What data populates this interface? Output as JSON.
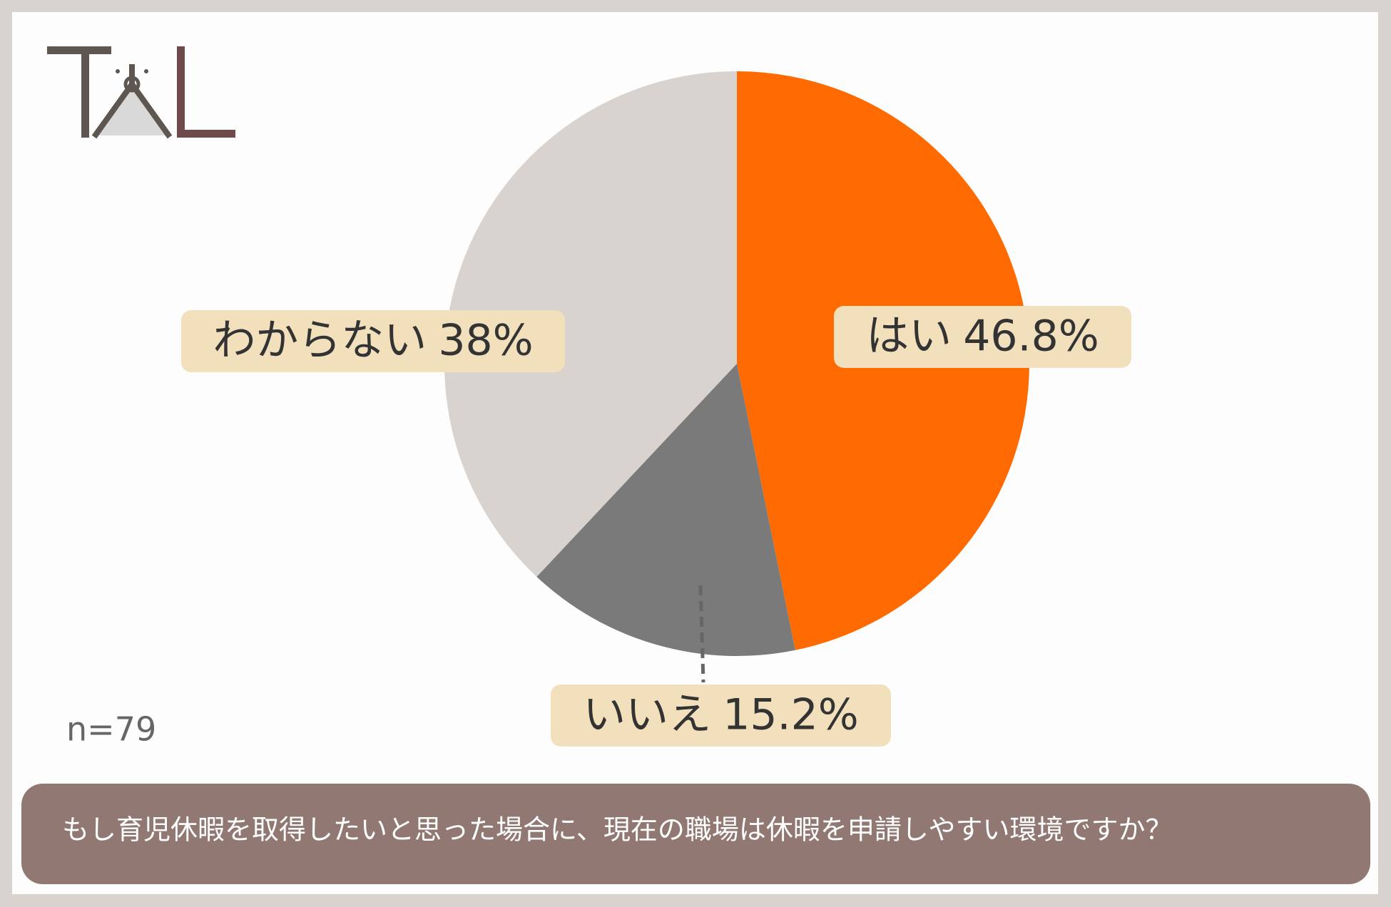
{
  "chart_data": {
    "type": "pie",
    "title": "もし育児休暇を取得したいと思った場合に、現在の職場は休暇を申請しやすい環境ですか？",
    "annotation": "n=79",
    "categories": [
      "はい",
      "いいえ",
      "わからない"
    ],
    "values": [
      46.8,
      15.2,
      38
    ],
    "value_labels": [
      "46.8%",
      "15.2%",
      "38%"
    ],
    "colors": [
      "#ff6b00",
      "#7a7a7a",
      "#d9d3d0"
    ]
  }
}
